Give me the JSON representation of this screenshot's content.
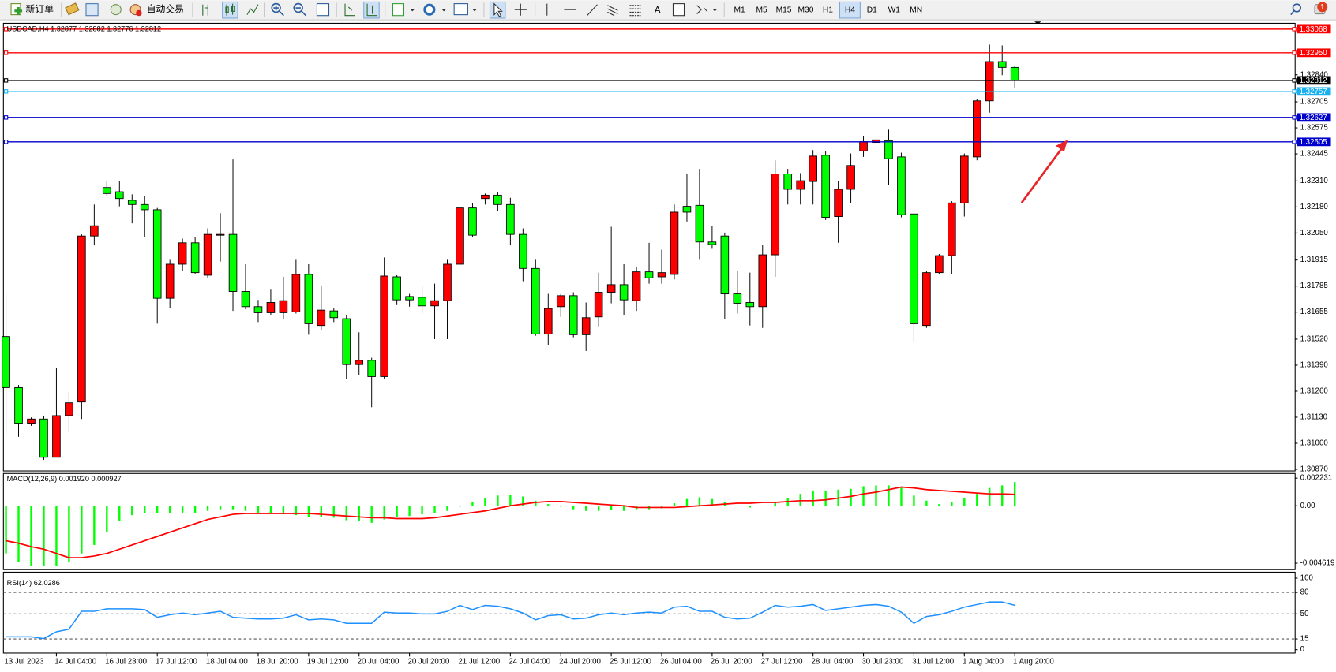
{
  "toolbar": {
    "new_order": "新订单",
    "auto_trading": "自动交易",
    "timeframes": [
      "M1",
      "M5",
      "M15",
      "M30",
      "H1",
      "H4",
      "D1",
      "W1",
      "MN"
    ],
    "active_timeframe": 5,
    "notifications": 1
  },
  "chart_data": [
    {
      "type": "candlestick",
      "title": "USDCAD,H4  1.32877 1.32882 1.32776 1.32812",
      "categories": [
        "13 Jul 2023",
        null,
        null,
        null,
        "14 Jul 04:00",
        null,
        null,
        null,
        "16 Jul 23:00",
        null,
        null,
        null,
        "17 Jul 12:00",
        null,
        null,
        null,
        "18 Jul 04:00",
        null,
        null,
        null,
        "18 Jul 20:00",
        null,
        null,
        null,
        "19 Jul 12:00",
        null,
        null,
        null,
        "20 Jul 04:00",
        null,
        null,
        null,
        "20 Jul 20:00",
        null,
        null,
        null,
        "21 Jul 12:00",
        null,
        null,
        null,
        "24 Jul 04:00",
        null,
        null,
        null,
        "24 Jul 20:00",
        null,
        null,
        null,
        "25 Jul 12:00",
        null,
        null,
        null,
        "26 Jul 04:00",
        null,
        null,
        null,
        "26 Jul 20:00",
        null,
        null,
        null,
        "27 Jul 12:00",
        null,
        null,
        null,
        "28 Jul 04:00",
        null,
        null,
        null,
        "30 Jul 23:00",
        null,
        null,
        null,
        "31 Jul 12:00",
        null,
        null,
        null,
        "1 Aug 04:00",
        null,
        null,
        null,
        "1 Aug 20:00"
      ],
      "open": [
        1.31533,
        1.31278,
        1.311,
        1.31121,
        1.3093,
        1.31138,
        1.31206,
        1.32035,
        1.32277,
        1.32256,
        1.32213,
        1.32192,
        1.32166,
        1.31724,
        1.31894,
        1.32001,
        1.31839,
        1.32039,
        1.32043,
        1.31758,
        1.31682,
        1.31652,
        1.31652,
        1.31656,
        1.31843,
        1.31588,
        1.31661,
        1.31622,
        1.31393,
        1.31414,
        1.31333,
        1.31831,
        1.31733,
        1.31729,
        1.31686,
        1.31712,
        1.31894,
        1.32175,
        1.32222,
        1.32239,
        1.32192,
        1.32043,
        1.31873,
        1.31546,
        1.31682,
        1.31737,
        1.31542,
        1.31631,
        1.31754,
        1.31792,
        1.31712,
        1.31856,
        1.31831,
        1.31843,
        1.32183,
        1.32188,
        1.32005,
        1.32035,
        1.31746,
        1.31703,
        1.31682,
        1.31941,
        1.32345,
        1.32268,
        1.32307,
        1.32438,
        1.32132,
        1.32268,
        1.3246,
        1.32502,
        1.32511,
        1.3243,
        1.32145,
        1.31588,
        1.31852,
        1.31937,
        1.322,
        1.3243,
        1.3271,
        1.32906,
        1.32877
      ],
      "high": [
        1.31746,
        1.31291,
        1.31129,
        1.31138,
        1.31376,
        1.31257,
        1.32043,
        1.32192,
        1.32311,
        1.32311,
        1.32243,
        1.32234,
        1.32175,
        1.31916,
        1.32022,
        1.3203,
        1.32073,
        1.32149,
        1.32417,
        1.31894,
        1.31716,
        1.31767,
        1.31831,
        1.31916,
        1.31894,
        1.31788,
        1.31673,
        1.31639,
        1.31554,
        1.31427,
        1.31928,
        1.31839,
        1.31746,
        1.31788,
        1.31797,
        1.31916,
        1.32243,
        1.322,
        1.32247,
        1.32256,
        1.32226,
        1.32073,
        1.31916,
        1.31746,
        1.31746,
        1.31754,
        1.31703,
        1.31852,
        1.32081,
        1.31894,
        1.31882,
        1.32001,
        1.31967,
        1.32192,
        1.32345,
        1.3237,
        1.32086,
        1.32052,
        1.3186,
        1.31852,
        1.31992,
        1.32413,
        1.3237,
        1.32349,
        1.32464,
        1.3246,
        1.32311,
        1.32447,
        1.32532,
        1.326,
        1.32566,
        1.32451,
        1.32149,
        1.3186,
        1.31945,
        1.32209,
        1.32447,
        1.32719,
        1.32991,
        1.32987,
        1.32882
      ],
      "low": [
        1.31044,
        1.31032,
        1.31087,
        1.30917,
        1.3093,
        1.31057,
        1.31121,
        1.31988,
        1.32234,
        1.32183,
        1.32098,
        1.3203,
        1.31597,
        1.31673,
        1.3186,
        1.31843,
        1.31826,
        1.31907,
        1.31661,
        1.31669,
        1.31605,
        1.31639,
        1.31618,
        1.31648,
        1.31542,
        1.31567,
        1.31605,
        1.31321,
        1.31342,
        1.3118,
        1.31321,
        1.3169,
        1.31682,
        1.31648,
        1.3152,
        1.3152,
        1.31809,
        1.3203,
        1.32192,
        1.32158,
        1.31988,
        1.31809,
        1.31537,
        1.31491,
        1.31631,
        1.31529,
        1.31461,
        1.31584,
        1.31699,
        1.31639,
        1.31661,
        1.31797,
        1.31797,
        1.31818,
        1.32107,
        1.31916,
        1.31971,
        1.31618,
        1.31648,
        1.31588,
        1.31576,
        1.31831,
        1.32192,
        1.32192,
        1.32192,
        1.32115,
        1.32001,
        1.322,
        1.3243,
        1.32404,
        1.3229,
        1.32128,
        1.31503,
        1.31576,
        1.31843,
        1.31843,
        1.32132,
        1.32413,
        1.32651,
        1.32838,
        1.32776
      ],
      "close": [
        1.31278,
        1.311,
        1.31121,
        1.3093,
        1.31138,
        1.31202,
        1.32035,
        1.32086,
        1.32247,
        1.32222,
        1.32192,
        1.32166,
        1.31724,
        1.31894,
        1.32001,
        1.31852,
        1.32043,
        1.32043,
        1.31758,
        1.31682,
        1.31652,
        1.31703,
        1.31712,
        1.31843,
        1.31597,
        1.31665,
        1.31627,
        1.31393,
        1.31414,
        1.31333,
        1.31835,
        1.31716,
        1.31716,
        1.31686,
        1.31712,
        1.31894,
        1.32175,
        1.32039,
        1.32239,
        1.32192,
        1.32043,
        1.31873,
        1.31546,
        1.31673,
        1.31737,
        1.31542,
        1.31627,
        1.31754,
        1.31792,
        1.31716,
        1.31856,
        1.31826,
        1.31852,
        1.32154,
        1.32154,
        1.32005,
        1.31992,
        1.31746,
        1.31699,
        1.31682,
        1.31941,
        1.32345,
        1.32268,
        1.32311,
        1.32434,
        1.32128,
        1.32268,
        1.32387,
        1.32506,
        1.32515,
        1.32421,
        1.32141,
        1.31597,
        1.31852,
        1.31937,
        1.322,
        1.32434,
        1.3271,
        1.32906,
        1.32877,
        1.32812
      ],
      "up_color": "#ff0000",
      "down_color": "#00ff00",
      "ylim": [
        1.30862,
        1.33093
      ],
      "yticks": [
        {
          "value": 1.3087,
          "label": "1.30870"
        },
        {
          "value": 1.31,
          "label": "1.31000"
        },
        {
          "value": 1.3113,
          "label": "1.31130"
        },
        {
          "value": 1.3126,
          "label": "1.31260"
        },
        {
          "value": 1.3139,
          "label": "1.31390"
        },
        {
          "value": 1.3152,
          "label": "1.31520"
        },
        1.31655,
        1.31785,
        1.31915,
        {
          "value": 1.3205,
          "label": "1.32050"
        },
        {
          "value": 1.3218,
          "label": "1.32180"
        },
        {
          "value": 1.3231,
          "label": "1.32310"
        },
        1.32445,
        1.32575,
        1.32705,
        {
          "value": 1.3284,
          "label": "1.32840"
        }
      ],
      "levels": [
        {
          "value": 1.33068,
          "color": "#ff0000"
        },
        {
          "value": 1.3295,
          "label": "1.32950",
          "color": "#ff0000"
        },
        {
          "value": 1.32812,
          "color": "#000000"
        },
        {
          "value": 1.32757,
          "color": "#1ab0f0"
        },
        {
          "value": 1.32627,
          "color": "#0000cc"
        },
        {
          "value": 1.32505,
          "color": "#0000cc"
        }
      ],
      "grid": false
    },
    {
      "type": "macd",
      "title": "MACD(12,26,9) 0.001920 0.000927",
      "series": [
        {
          "style": "histogram",
          "color": "#00ff00",
          "values": [
            -0.003836,
            -0.004521,
            -0.004864,
            -0.004864,
            -0.004864,
            -0.004521,
            -0.003836,
            -0.003151,
            -0.002124,
            -0.001233,
            -0.000754,
            -0.000617,
            -0.000617,
            -0.000617,
            -0.000548,
            -0.000548,
            -0.000411,
            -0.000274,
            -0.000274,
            -0.000411,
            -0.000548,
            -0.000617,
            -0.000685,
            -0.000754,
            -0.000891,
            -0.000891,
            -0.000959,
            -0.001165,
            -0.001233,
            -0.00137,
            -0.001096,
            -0.000891,
            -0.000822,
            -0.000685,
            -0.000617,
            -0.000411,
            -6.9e-05,
            0.000274,
            0.000617,
            0.000822,
            0.000891,
            0.000754,
            0.000411,
            0.000137,
            -6.9e-05,
            -0.000274,
            -0.000411,
            -0.000411,
            -0.000343,
            -0.000411,
            -0.000274,
            -0.000274,
            -0.000206,
            0.000206,
            0.000548,
            0.000685,
            0.000548,
            0.000274,
            0,
            -0.000137,
            0,
            0.000274,
            0.000617,
            0.000959,
            0.001233,
            0.001165,
            0.001302,
            0.00137,
            0.001576,
            0.001644,
            0.001644,
            0.001439,
            0.000822,
            0.000411,
            0.000137,
            0.000274,
            0.000617,
            0.000959,
            0.001439,
            0.001644,
            0.00192
          ]
        },
        {
          "style": "line",
          "color": "#ff0000",
          "values": [
            -0.002809,
            -0.003014,
            -0.003288,
            -0.003494,
            -0.003836,
            -0.004179,
            -0.004179,
            -0.004042,
            -0.003836,
            -0.003494,
            -0.003151,
            -0.002809,
            -0.002466,
            -0.002124,
            -0.001781,
            -0.001439,
            -0.001096,
            -0.000891,
            -0.000685,
            -0.000617,
            -0.000617,
            -0.000617,
            -0.000617,
            -0.000617,
            -0.000617,
            -0.000685,
            -0.000754,
            -0.000822,
            -0.000891,
            -0.000959,
            -0.000959,
            -0.001028,
            -0.001028,
            -0.001028,
            -0.000959,
            -0.000822,
            -0.000685,
            -0.000548,
            -0.000411,
            -0.000206,
            0,
            0.000137,
            0.000274,
            0.000343,
            0.000343,
            0.000274,
            0.000206,
            0.000137,
            6.9e-05,
            0,
            -0.000137,
            -0.000137,
            -0.000137,
            -0.000137,
            -6.9e-05,
            0,
            6.9e-05,
            0.000137,
            0.000206,
            0.000206,
            0.000274,
            0.000274,
            0.000343,
            0.000411,
            0.000411,
            0.00048,
            0.000617,
            0.000754,
            0.000959,
            0.001096,
            0.001302,
            0.001507,
            0.001439,
            0.001302,
            0.001233,
            0.001165,
            0.001096,
            0.001028,
            0.000959,
            0.000959,
            0.000927
          ]
        }
      ],
      "ylim": [
        -0.005069,
        0.002535
      ],
      "yticks": [
        0.002231,
        {
          "value": 0,
          "label": "0.00"
        },
        -0.004619
      ]
    },
    {
      "type": "rsi",
      "title": "RSI(14) 62.0286",
      "series": [
        {
          "style": "line",
          "color": "#1e90ff",
          "values": [
            17.9,
            17.9,
            17.9,
            15.5,
            25.0,
            28.6,
            53.6,
            53.6,
            57.1,
            57.1,
            57.1,
            56.0,
            45.2,
            48.8,
            51.2,
            48.8,
            51.2,
            53.6,
            45.2,
            44.0,
            42.9,
            42.9,
            44.0,
            48.8,
            41.7,
            42.9,
            41.7,
            36.9,
            36.9,
            36.9,
            52.4,
            51.2,
            51.2,
            50.0,
            50.0,
            53.6,
            61.9,
            56.0,
            61.9,
            60.7,
            57.1,
            51.2,
            41.7,
            47.6,
            48.8,
            42.9,
            44.0,
            48.8,
            51.2,
            48.8,
            51.2,
            52.4,
            51.2,
            59.5,
            60.7,
            53.6,
            53.6,
            45.2,
            42.9,
            44.0,
            52.4,
            61.9,
            59.5,
            60.7,
            63.1,
            54.8,
            57.1,
            59.5,
            61.9,
            63.1,
            60.7,
            52.4,
            36.9,
            46.4,
            48.8,
            53.6,
            59.5,
            63.1,
            66.7,
            66.7,
            62.0286
          ]
        }
      ],
      "ylim": [
        0,
        100
      ],
      "yticks": [
        100,
        80,
        50,
        15,
        0
      ],
      "levels": [
        80,
        50,
        15
      ]
    }
  ]
}
